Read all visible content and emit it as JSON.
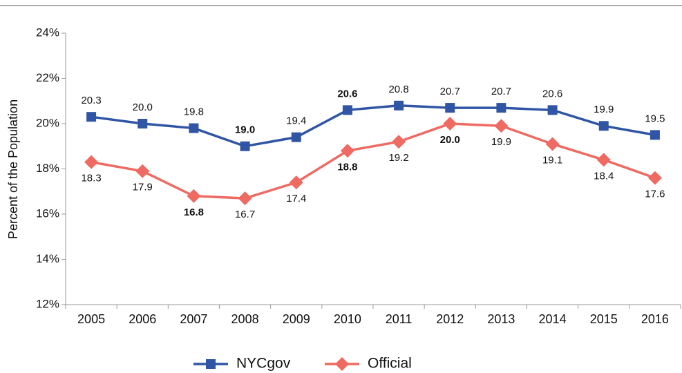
{
  "chart_data": {
    "type": "line",
    "y_label": "Percent of the Population",
    "categories": [
      "2005",
      "2006",
      "2007",
      "2008",
      "2009",
      "2010",
      "2011",
      "2012",
      "2013",
      "2014",
      "2015",
      "2016"
    ],
    "series": [
      {
        "name": "NYCgov",
        "color": "#2f55a4",
        "marker": "square",
        "values": [
          20.3,
          20.0,
          19.8,
          19.0,
          19.4,
          20.6,
          20.8,
          20.7,
          20.7,
          20.6,
          19.9,
          19.5
        ],
        "value_labels": [
          "20.3",
          "20.0",
          "19.8",
          "19.0",
          "19.4",
          "20.6",
          "20.8",
          "20.7",
          "20.7",
          "20.6",
          "19.9",
          "19.5"
        ],
        "label_position": "above",
        "bold_labels": [
          3,
          5
        ]
      },
      {
        "name": "Official",
        "color": "#ee6a62",
        "marker": "diamond",
        "values": [
          18.3,
          17.9,
          16.8,
          16.7,
          17.4,
          18.8,
          19.2,
          20.0,
          19.9,
          19.1,
          18.4,
          17.6
        ],
        "value_labels": [
          "18.3",
          "17.9",
          "16.8",
          "16.7",
          "17.4",
          "18.8",
          "19.2",
          "20.0",
          "19.9",
          "19.1",
          "18.4",
          "17.6"
        ],
        "label_position": "below",
        "bold_labels": [
          2,
          5,
          7
        ]
      }
    ],
    "ylim": [
      12,
      24
    ],
    "yticks": [
      {
        "value": 12,
        "label": "12%"
      },
      {
        "value": 14,
        "label": "14%"
      },
      {
        "value": 16,
        "label": "16%"
      },
      {
        "value": 18,
        "label": "18%"
      },
      {
        "value": 20,
        "label": "20%"
      },
      {
        "value": 22,
        "label": "22%"
      },
      {
        "value": 24,
        "label": "24%"
      }
    ],
    "legend": "bottom"
  }
}
